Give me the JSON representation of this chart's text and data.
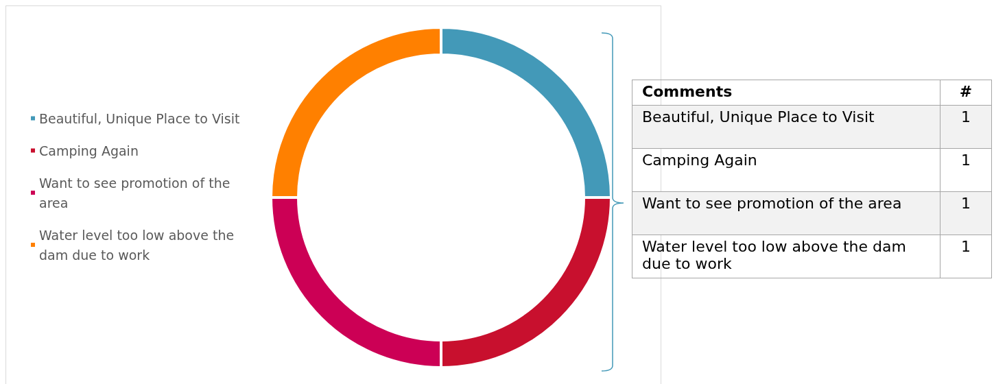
{
  "chart_data": {
    "type": "donut",
    "categories": [
      "Beautiful, Unique Place to Visit",
      "Camping Again",
      "Want to see promotion of the area",
      "Water level too low above the dam due to work"
    ],
    "values": [
      1,
      1,
      1,
      1
    ],
    "colors": [
      "#4399b8",
      "#c8102e",
      "#cc0055",
      "#ff8000"
    ],
    "legend": "left",
    "data_labels": true,
    "annotations": [
      "Comments",
      "#"
    ]
  }
}
